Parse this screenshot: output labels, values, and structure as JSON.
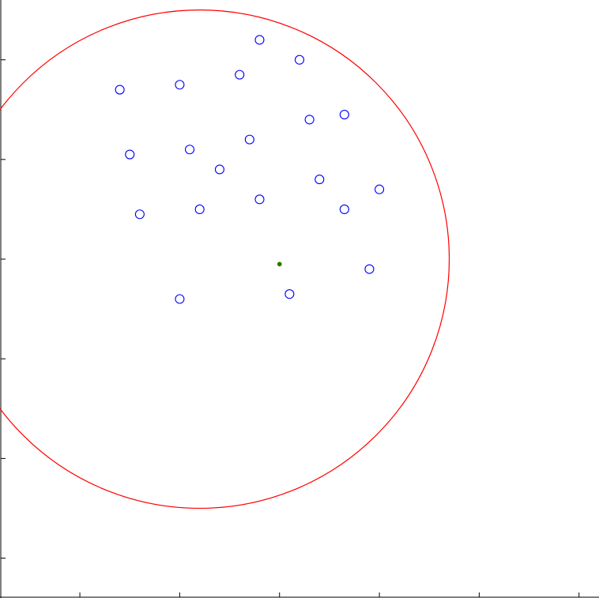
{
  "chart_data": {
    "type": "scatter",
    "title": "",
    "xlabel": "",
    "ylabel": "",
    "xlim": [
      -0.8,
      5.2
    ],
    "ylim": [
      -3.9,
      2.1
    ],
    "grid": false,
    "xticks": [
      0,
      1,
      2,
      3,
      4,
      5
    ],
    "yticks": [
      -3.5,
      -2.5,
      -1.5,
      -0.5,
      0.5,
      1.5
    ],
    "circle": {
      "center": [
        1.2,
        -0.5
      ],
      "radius": 2.5,
      "color": "#ff0000"
    },
    "center_point": {
      "x": 2.0,
      "y": -0.55,
      "color": "#008000"
    },
    "series": [
      {
        "marker": "open-circle",
        "color": "#0000ff",
        "points": [
          [
            1.8,
            1.7
          ],
          [
            0.4,
            1.2
          ],
          [
            1.0,
            1.25
          ],
          [
            1.6,
            1.35
          ],
          [
            2.2,
            1.5
          ],
          [
            2.3,
            0.9
          ],
          [
            1.1,
            0.6
          ],
          [
            0.5,
            0.55
          ],
          [
            1.7,
            0.7
          ],
          [
            2.65,
            0.95
          ],
          [
            1.2,
            0.0
          ],
          [
            0.6,
            -0.05
          ],
          [
            1.8,
            0.1
          ],
          [
            2.4,
            0.3
          ],
          [
            2.65,
            0.0
          ],
          [
            3.0,
            0.2
          ],
          [
            2.9,
            -0.6
          ],
          [
            2.1,
            -0.85
          ],
          [
            1.0,
            -0.9
          ],
          [
            1.4,
            0.4
          ]
        ]
      }
    ]
  }
}
